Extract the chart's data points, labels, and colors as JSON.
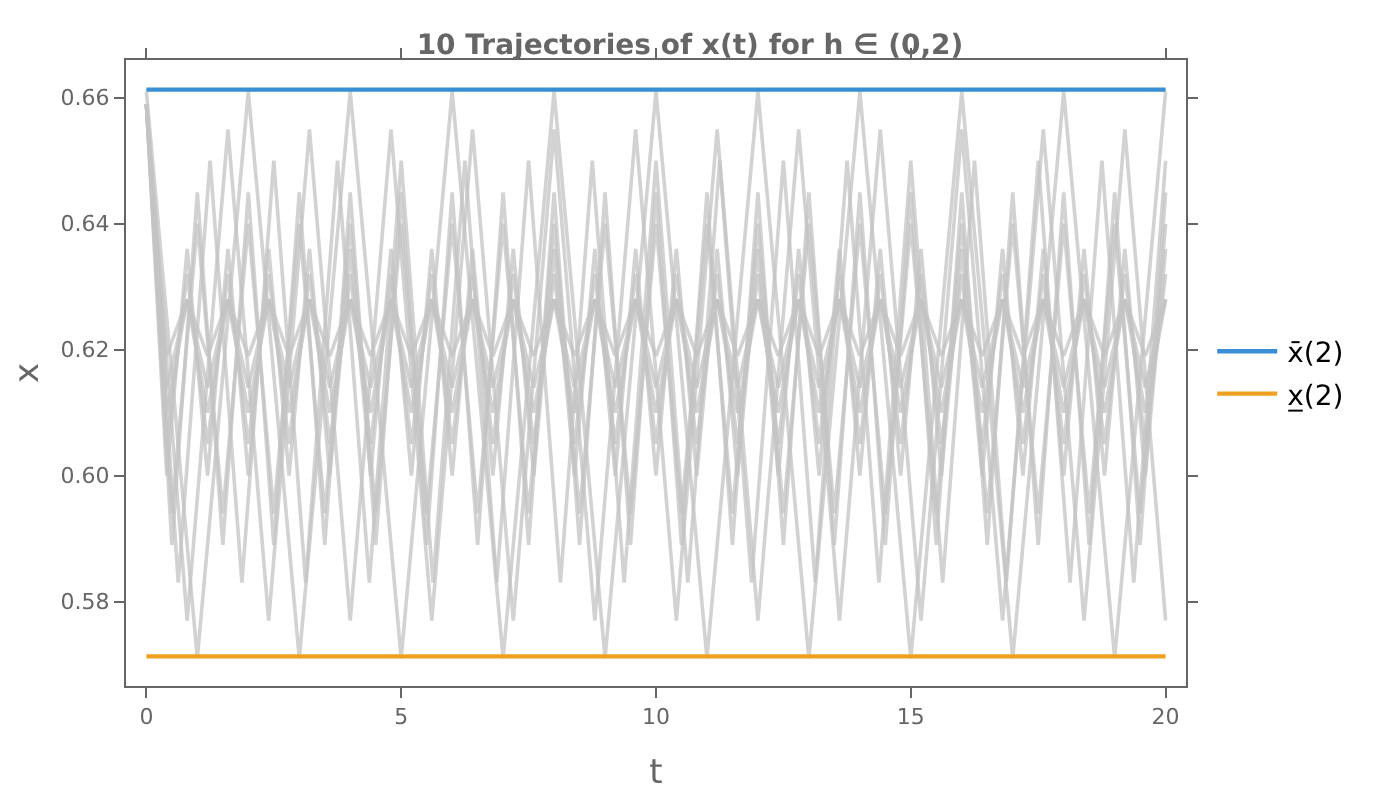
{
  "chart_data": {
    "type": "line",
    "title": "10 Trajectories of x(t) for h ∈ (0,2)",
    "xlabel": "t",
    "ylabel": "x",
    "xlim": [
      -0.4,
      20.4
    ],
    "ylim": [
      0.5666,
      0.666
    ],
    "xticks": [
      0,
      5,
      10,
      15,
      20
    ],
    "yticks": [
      0.58,
      {
        "value": 0.6,
        "label": "0.60"
      },
      0.62,
      0.64,
      0.66
    ],
    "grid": false,
    "legend": "right",
    "marker": "none",
    "line_style": "solid",
    "x": [
      0,
      0.4,
      0.8,
      1.2,
      1.6,
      2,
      2.4,
      2.8,
      3.2,
      3.6,
      4,
      4.4,
      4.8,
      5.2,
      5.6,
      6,
      6.4,
      6.8,
      7.2,
      7.6,
      8,
      8.4,
      8.8,
      9.2,
      9.6,
      10,
      10.4,
      10.8,
      11.2,
      11.6,
      12,
      12.4,
      12.8,
      13.2,
      13.6,
      14,
      14.4,
      14.8,
      15.2,
      15.6,
      16,
      16.4,
      16.8,
      17.2,
      17.6,
      18,
      18.4,
      18.8,
      19.2,
      19.6,
      20
    ],
    "series": [
      {
        "color": "#c4c4c4",
        "x": [
          0,
          1,
          2,
          3,
          4,
          5,
          6,
          7,
          8,
          9,
          10,
          11,
          12,
          13,
          14,
          15,
          16,
          17,
          18,
          19,
          20
        ],
        "values": [
          0.661,
          0.571,
          0.661,
          0.571,
          0.661,
          0.571,
          0.661,
          0.571,
          0.661,
          0.571,
          0.661,
          0.571,
          0.661,
          0.571,
          0.661,
          0.571,
          0.661,
          0.571,
          0.661,
          0.571,
          0.661
        ]
      },
      {
        "color": "#c4c4c4",
        "x": [
          0,
          0.8,
          1.6,
          2.4,
          3.2,
          4,
          4.8,
          5.6,
          6.4,
          7.2,
          8,
          8.8,
          9.6,
          10.4,
          11.2,
          12,
          12.8,
          13.6,
          14.4,
          15.2,
          16,
          16.8,
          17.6,
          18.4,
          19.2,
          20
        ],
        "values": [
          0.659,
          0.577,
          0.655,
          0.577,
          0.655,
          0.577,
          0.655,
          0.577,
          0.655,
          0.577,
          0.655,
          0.577,
          0.655,
          0.577,
          0.655,
          0.577,
          0.655,
          0.577,
          0.655,
          0.577,
          0.655,
          0.577,
          0.655,
          0.577,
          0.655,
          0.577
        ]
      },
      {
        "color": "#c4c4c4",
        "x": [
          0,
          0.625,
          1.25,
          1.875,
          2.5,
          3.125,
          3.75,
          4.375,
          5,
          5.625,
          6.25,
          6.875,
          7.5,
          8.125,
          8.75,
          9.375,
          10,
          10.625,
          11.25,
          11.875,
          12.5,
          13.125,
          13.75,
          14.375,
          15,
          15.625,
          16.25,
          16.875,
          17.5,
          18.125,
          18.75,
          19.375,
          20
        ],
        "values": [
          0.659,
          0.583,
          0.65,
          0.583,
          0.65,
          0.583,
          0.65,
          0.583,
          0.65,
          0.583,
          0.65,
          0.583,
          0.65,
          0.583,
          0.65,
          0.583,
          0.65,
          0.583,
          0.65,
          0.583,
          0.65,
          0.583,
          0.65,
          0.583,
          0.65,
          0.583,
          0.65,
          0.583,
          0.65,
          0.583,
          0.65,
          0.583,
          0.65
        ]
      },
      {
        "color": "#c4c4c4",
        "x": [
          0,
          0.5,
          1,
          1.5,
          2,
          2.5,
          3,
          3.5,
          4,
          4.5,
          5,
          5.5,
          6,
          6.5,
          7,
          7.5,
          8,
          8.5,
          9,
          9.5,
          10,
          10.5,
          11,
          11.5,
          12,
          12.5,
          13,
          13.5,
          14,
          14.5,
          15,
          15.5,
          16,
          16.5,
          17,
          17.5,
          18,
          18.5,
          19,
          19.5,
          20
        ],
        "values": [
          0.659,
          0.589,
          0.645,
          0.589,
          0.645,
          0.589,
          0.645,
          0.589,
          0.645,
          0.589,
          0.645,
          0.589,
          0.645,
          0.589,
          0.645,
          0.589,
          0.645,
          0.589,
          0.645,
          0.589,
          0.645,
          0.589,
          0.645,
          0.589,
          0.645,
          0.589,
          0.645,
          0.589,
          0.645,
          0.589,
          0.645,
          0.589,
          0.645,
          0.589,
          0.645,
          0.589,
          0.645,
          0.589,
          0.645,
          0.589,
          0.645
        ]
      },
      {
        "color": "#c4c4c4",
        "x": [
          0,
          0.5,
          1,
          1.5,
          2,
          2.5,
          3,
          3.5,
          4,
          4.5,
          5,
          5.5,
          6,
          6.5,
          7,
          7.5,
          8,
          8.5,
          9,
          9.5,
          10,
          10.5,
          11,
          11.5,
          12,
          12.5,
          13,
          13.5,
          14,
          14.5,
          15,
          15.5,
          16,
          16.5,
          17,
          17.5,
          18,
          18.5,
          19,
          19.5,
          20
        ],
        "values": [
          0.659,
          0.594,
          0.64,
          0.594,
          0.64,
          0.594,
          0.64,
          0.594,
          0.64,
          0.594,
          0.64,
          0.594,
          0.64,
          0.594,
          0.64,
          0.594,
          0.64,
          0.594,
          0.64,
          0.594,
          0.64,
          0.594,
          0.64,
          0.594,
          0.64,
          0.594,
          0.64,
          0.594,
          0.64,
          0.594,
          0.64,
          0.594,
          0.64,
          0.594,
          0.64,
          0.594,
          0.64,
          0.594,
          0.64,
          0.594,
          0.64
        ]
      },
      {
        "color": "#c4c4c4",
        "values": [
          0.659,
          0.6,
          0.636,
          0.6,
          0.636,
          0.6,
          0.636,
          0.6,
          0.636,
          0.6,
          0.636,
          0.6,
          0.636,
          0.6,
          0.636,
          0.6,
          0.636,
          0.6,
          0.636,
          0.6,
          0.636,
          0.6,
          0.636,
          0.6,
          0.636,
          0.6,
          0.636,
          0.6,
          0.636,
          0.6,
          0.636,
          0.6,
          0.636,
          0.6,
          0.636,
          0.6,
          0.636,
          0.6,
          0.636,
          0.6,
          0.636,
          0.6,
          0.636,
          0.6,
          0.636,
          0.6,
          0.636,
          0.6,
          0.636,
          0.6,
          0.636
        ]
      },
      {
        "color": "#c4c4c4",
        "values": [
          0.659,
          0.605,
          0.632,
          0.605,
          0.632,
          0.605,
          0.632,
          0.605,
          0.632,
          0.605,
          0.632,
          0.605,
          0.632,
          0.605,
          0.632,
          0.605,
          0.632,
          0.605,
          0.632,
          0.605,
          0.632,
          0.605,
          0.632,
          0.605,
          0.632,
          0.605,
          0.632,
          0.605,
          0.632,
          0.605,
          0.632,
          0.605,
          0.632,
          0.605,
          0.632,
          0.605,
          0.632,
          0.605,
          0.632,
          0.605,
          0.632,
          0.605,
          0.632,
          0.605,
          0.632,
          0.605,
          0.632,
          0.605,
          0.632,
          0.605,
          0.632
        ]
      },
      {
        "color": "#c4c4c4",
        "values": [
          0.659,
          0.61,
          0.628,
          0.61,
          0.628,
          0.61,
          0.628,
          0.61,
          0.628,
          0.61,
          0.628,
          0.61,
          0.628,
          0.61,
          0.628,
          0.61,
          0.628,
          0.61,
          0.628,
          0.61,
          0.628,
          0.61,
          0.628,
          0.61,
          0.628,
          0.61,
          0.628,
          0.61,
          0.628,
          0.61,
          0.628,
          0.61,
          0.628,
          0.61,
          0.628,
          0.61,
          0.628,
          0.61,
          0.628,
          0.61,
          0.628,
          0.61,
          0.628,
          0.61,
          0.628,
          0.61,
          0.628,
          0.61,
          0.628,
          0.61,
          0.628
        ]
      },
      {
        "color": "#c4c4c4",
        "values": [
          0.659,
          0.614,
          0.628,
          0.614,
          0.628,
          0.614,
          0.628,
          0.614,
          0.628,
          0.614,
          0.628,
          0.614,
          0.628,
          0.614,
          0.628,
          0.614,
          0.628,
          0.614,
          0.628,
          0.614,
          0.628,
          0.614,
          0.628,
          0.614,
          0.628,
          0.614,
          0.628,
          0.614,
          0.628,
          0.614,
          0.628,
          0.614,
          0.628,
          0.614,
          0.628,
          0.614,
          0.628,
          0.614,
          0.628,
          0.614,
          0.628,
          0.614,
          0.628,
          0.614,
          0.628,
          0.614,
          0.628,
          0.614,
          0.628,
          0.614,
          0.628
        ]
      },
      {
        "color": "#c4c4c4",
        "values": [
          0.659,
          0.619,
          0.628,
          0.619,
          0.628,
          0.619,
          0.628,
          0.619,
          0.628,
          0.619,
          0.628,
          0.619,
          0.628,
          0.619,
          0.628,
          0.619,
          0.628,
          0.619,
          0.628,
          0.619,
          0.628,
          0.619,
          0.628,
          0.619,
          0.628,
          0.619,
          0.628,
          0.619,
          0.628,
          0.619,
          0.628,
          0.619,
          0.628,
          0.619,
          0.628,
          0.619,
          0.628,
          0.619,
          0.628,
          0.619,
          0.628,
          0.619,
          0.628,
          0.619,
          0.628,
          0.619,
          0.628,
          0.619,
          0.628,
          0.619,
          0.628
        ]
      },
      {
        "name": "x̄(2)",
        "color": "#3a8fd4",
        "x": [
          0,
          20
        ],
        "values": [
          0.6613,
          0.6613
        ]
      },
      {
        "name": "x̲(2)",
        "color": "#f0a020",
        "x": [
          0,
          20
        ],
        "values": [
          0.5713,
          0.5713
        ]
      }
    ]
  }
}
